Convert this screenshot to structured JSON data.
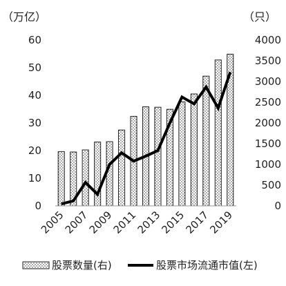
{
  "chart_data": {
    "type": "bar+line",
    "title": "",
    "categories": [
      "2005",
      "2006",
      "2007",
      "2008",
      "2009",
      "2010",
      "2011",
      "2012",
      "2013",
      "2014",
      "2015",
      "2016",
      "2017",
      "2018",
      "2019"
    ],
    "x_tick_labels": [
      "2005",
      "2007",
      "2009",
      "2011",
      "2013",
      "2015",
      "2017",
      "2019"
    ],
    "left_axis": {
      "unit": "（万亿）",
      "ylim": [
        0,
        60
      ],
      "ticks": [
        "0",
        "10",
        "20",
        "30",
        "40",
        "50",
        "60"
      ]
    },
    "right_axis": {
      "unit": "（只）",
      "ylim": [
        0,
        4000
      ],
      "ticks": [
        "0",
        "500",
        "1000",
        "1500",
        "2000",
        "2500",
        "3000",
        "3500",
        "4000"
      ]
    },
    "series": [
      {
        "name": "股票数量(右)",
        "type": "bar",
        "axis": "right",
        "values": [
          1310,
          1300,
          1350,
          1540,
          1550,
          1830,
          2160,
          2390,
          2380,
          2330,
          2510,
          2700,
          3130,
          3520,
          3660
        ]
      },
      {
        "name": "股票市场流通市值(左)",
        "type": "line",
        "axis": "left",
        "values": [
          0.7,
          1.8,
          8.5,
          4.2,
          15.0,
          19.2,
          16.2,
          18.0,
          20.0,
          30.0,
          39.4,
          36.9,
          43.0,
          35.4,
          48.4
        ]
      }
    ],
    "grid": false,
    "legend_position": "bottom"
  }
}
